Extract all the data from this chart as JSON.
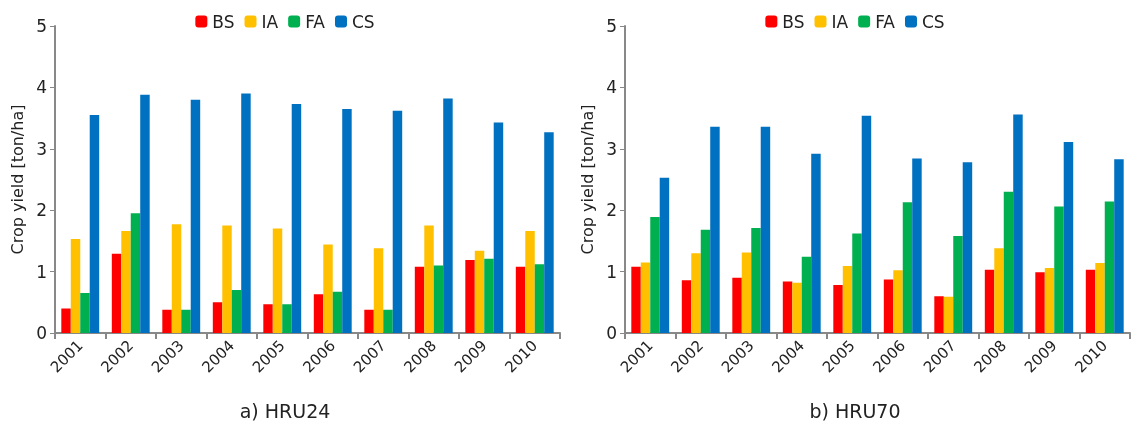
{
  "chart_data": [
    {
      "type": "bar",
      "title": "a) HRU24",
      "ylabel": "Crop yield [ton/ha]",
      "categories": [
        "2001",
        "2002",
        "2003",
        "2004",
        "2005",
        "2006",
        "2007",
        "2008",
        "2009",
        "2010"
      ],
      "ylim": [
        0,
        5
      ],
      "yticks": [
        0,
        1,
        2,
        3,
        4,
        5
      ],
      "grid": false,
      "legend": "top",
      "series": [
        {
          "name": "BS",
          "color": "#ff0000",
          "values": [
            0.4,
            1.29,
            0.38,
            0.5,
            0.47,
            0.63,
            0.38,
            1.08,
            1.19,
            1.08
          ]
        },
        {
          "name": "IA",
          "color": "#ffc000",
          "values": [
            1.53,
            1.66,
            1.77,
            1.75,
            1.7,
            1.44,
            1.38,
            1.75,
            1.34,
            1.66
          ]
        },
        {
          "name": "FA",
          "color": "#00b050",
          "values": [
            0.65,
            1.95,
            0.38,
            0.7,
            0.47,
            0.67,
            0.38,
            1.1,
            1.21,
            1.12
          ]
        },
        {
          "name": "CS",
          "color": "#0070c0",
          "values": [
            3.55,
            3.88,
            3.8,
            3.9,
            3.73,
            3.65,
            3.62,
            3.82,
            3.43,
            3.27
          ]
        }
      ]
    },
    {
      "type": "bar",
      "title": "b) HRU70",
      "ylabel": "Crop yield [ton/ha]",
      "categories": [
        "2001",
        "2002",
        "2003",
        "2004",
        "2005",
        "2006",
        "2007",
        "2008",
        "2009",
        "2010"
      ],
      "ylim": [
        0,
        5
      ],
      "yticks": [
        0,
        1,
        2,
        3,
        4,
        5
      ],
      "grid": false,
      "legend": "top",
      "series": [
        {
          "name": "BS",
          "color": "#ff0000",
          "values": [
            1.08,
            0.86,
            0.9,
            0.84,
            0.78,
            0.87,
            0.6,
            1.03,
            0.99,
            1.03
          ]
        },
        {
          "name": "IA",
          "color": "#ffc000",
          "values": [
            1.15,
            1.3,
            1.31,
            0.82,
            1.09,
            1.02,
            0.59,
            1.38,
            1.06,
            1.14
          ]
        },
        {
          "name": "FA",
          "color": "#00b050",
          "values": [
            1.89,
            1.68,
            1.71,
            1.24,
            1.62,
            2.13,
            1.58,
            2.3,
            2.06,
            2.14
          ]
        },
        {
          "name": "CS",
          "color": "#0070c0",
          "values": [
            2.53,
            3.36,
            3.36,
            2.92,
            3.54,
            2.84,
            2.78,
            3.56,
            3.11,
            2.83
          ]
        }
      ]
    }
  ]
}
